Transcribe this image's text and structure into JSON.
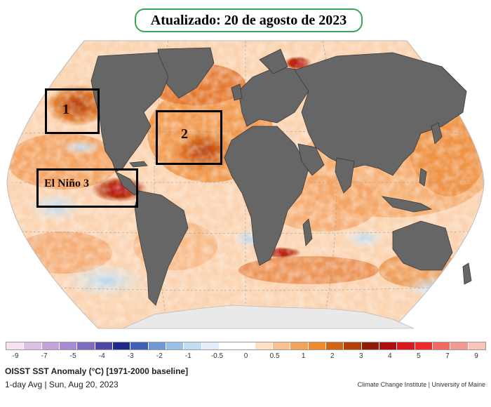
{
  "header": {
    "title": "Atualizado: 20 de agosto de 2023"
  },
  "map": {
    "projection": "robinson",
    "land_color": "#666666",
    "land_border_color": "#3a3a3a",
    "ocean_base_color": "#fbd3b0",
    "regions": [
      {
        "id": "box-1",
        "label": "1"
      },
      {
        "id": "box-2",
        "label": "2"
      },
      {
        "id": "box-el-nino",
        "label": "El Niño 3"
      }
    ]
  },
  "colorbar": {
    "ticks": [
      "-9",
      "-7",
      "-5",
      "-4",
      "-3",
      "-2",
      "-1",
      "-0.5",
      "0",
      "0.5",
      "1",
      "2",
      "3",
      "4",
      "5",
      "7",
      "9"
    ],
    "colors": [
      "#f6e3f2",
      "#dcc0e6",
      "#c6a4da",
      "#a98bd1",
      "#7d6cbf",
      "#4c48a8",
      "#202a8e",
      "#3f60b6",
      "#6f98d4",
      "#9cc1e6",
      "#c3ddf2",
      "#e3eef8",
      "#ffffff",
      "#ffffff",
      "#fde1c3",
      "#f9c18f",
      "#f5a35c",
      "#ef8a30",
      "#d46414",
      "#b24108",
      "#8f1d0c",
      "#b00d12",
      "#d81a1f",
      "#ee2a2a",
      "#f06b66",
      "#f49a8e",
      "#f9c5b8"
    ]
  },
  "caption": {
    "title": "OISST SST Anomaly (°C) [1971-2000 baseline]",
    "subtitle": "1-day Avg | Sun, Aug 20, 2023",
    "credit": "Climate Change Institute | University of Maine"
  }
}
